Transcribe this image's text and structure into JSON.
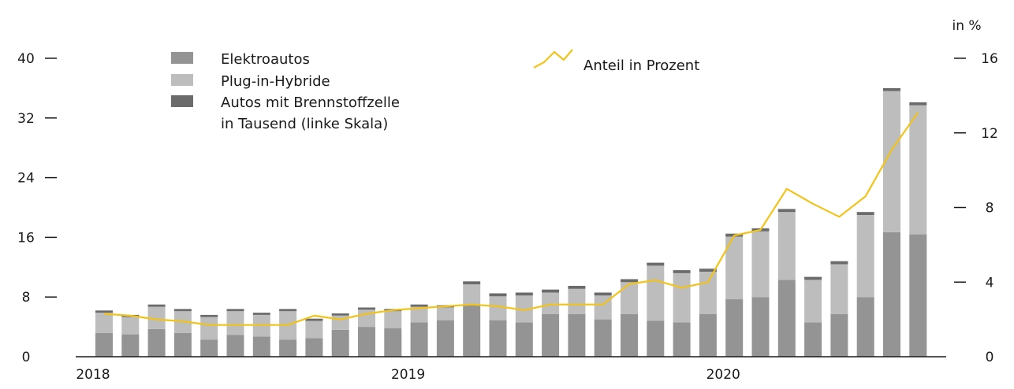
{
  "chart_data": {
    "type": "bar",
    "stacked": true,
    "x_labels": [
      "2018",
      "2019",
      "2020"
    ],
    "left_axis": {
      "ticks": [
        "0",
        "8",
        "16",
        "24",
        "32",
        "40"
      ],
      "ylim": [
        0,
        40
      ]
    },
    "right_axis": {
      "unit_label": "in %",
      "ticks": [
        "0",
        "4",
        "8",
        "12",
        "16"
      ],
      "ylim": [
        0,
        16
      ]
    },
    "series": [
      {
        "name": "Elektroautos",
        "color": "#949494",
        "values": [
          3.2,
          3.0,
          3.7,
          3.2,
          2.3,
          2.9,
          2.7,
          2.3,
          2.5,
          3.6,
          4.0,
          3.8,
          4.6,
          4.9,
          7.0,
          4.9,
          4.6,
          5.7,
          5.7,
          5.0,
          5.7,
          4.8,
          4.6,
          5.7,
          7.7,
          8.0,
          10.3,
          4.6,
          5.7,
          8.0,
          16.7,
          16.4
        ]
      },
      {
        "name": "Plug-in-Hybride",
        "color": "#bdbdbd",
        "values": [
          2.7,
          2.3,
          3.0,
          2.9,
          3.0,
          3.2,
          2.9,
          3.8,
          2.3,
          1.9,
          2.3,
          2.3,
          2.1,
          1.7,
          2.7,
          3.2,
          3.6,
          2.9,
          3.4,
          3.2,
          4.3,
          7.4,
          6.6,
          5.7,
          8.4,
          8.8,
          9.1,
          5.7,
          6.7,
          11.0,
          18.9,
          17.3
        ]
      },
      {
        "name": "Autos mit Brennstoffzelle",
        "color": "#6b6b6b",
        "values": [
          0.3,
          0.3,
          0.3,
          0.3,
          0.3,
          0.3,
          0.3,
          0.3,
          0.3,
          0.3,
          0.3,
          0.3,
          0.3,
          0.3,
          0.4,
          0.4,
          0.4,
          0.4,
          0.4,
          0.4,
          0.4,
          0.4,
          0.4,
          0.4,
          0.4,
          0.4,
          0.4,
          0.4,
          0.4,
          0.4,
          0.4,
          0.4
        ]
      }
    ],
    "line": {
      "name": "Anteil in Prozent",
      "color": "#f2c318",
      "axis": "right",
      "values": [
        2.3,
        2.2,
        2.0,
        1.9,
        1.7,
        1.7,
        1.7,
        1.7,
        2.2,
        2.0,
        2.3,
        2.5,
        2.6,
        2.7,
        2.8,
        2.7,
        2.5,
        2.8,
        2.8,
        2.8,
        3.9,
        4.1,
        3.7,
        4.0,
        6.5,
        6.8,
        9.0,
        8.2,
        7.5,
        8.6,
        11.1,
        13.1
      ]
    },
    "legend": {
      "title_line2": "in Tausend (linke Skala)"
    }
  }
}
